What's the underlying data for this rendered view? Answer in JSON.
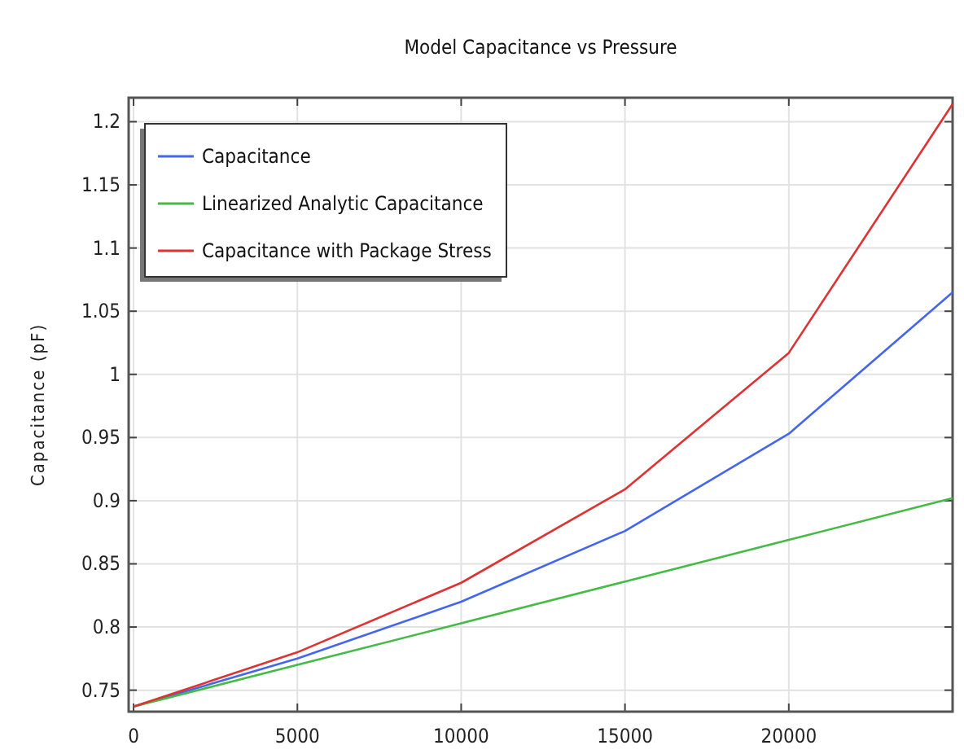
{
  "chart_data": {
    "type": "line",
    "title": "Model Capacitance vs Pressure",
    "ylabel": "Capacitance (pF)",
    "x": [
      0,
      5000,
      10000,
      15000,
      20000,
      25000
    ],
    "series": [
      {
        "name": "Capacitance",
        "color": "#4466ee",
        "values": [
          0.737,
          0.775,
          0.82,
          0.876,
          0.953,
          1.065
        ]
      },
      {
        "name": "Linearized Analytic Capacitance",
        "color": "#44bb44",
        "values": [
          0.737,
          0.77,
          0.803,
          0.836,
          0.869,
          0.902
        ]
      },
      {
        "name": "Capacitance with Package Stress",
        "color": "#dd3333",
        "values": [
          0.737,
          0.78,
          0.835,
          0.909,
          1.017,
          1.214
        ]
      }
    ],
    "xlim": [
      -150,
      25000
    ],
    "xticks": [
      0,
      5000,
      10000,
      15000,
      20000
    ],
    "ylim": [
      0.733,
      1.219
    ],
    "yticks": [
      {
        "value": 0.75,
        "label": "0.75"
      },
      {
        "value": 0.8,
        "label": "0.8"
      },
      {
        "value": 0.85,
        "label": "0.85"
      },
      {
        "value": 0.9,
        "label": "0.9"
      },
      {
        "value": 0.95,
        "label": "0.95"
      },
      1,
      {
        "value": 1.05,
        "label": "1.05"
      },
      {
        "value": 1.1,
        "label": "1.1"
      },
      {
        "value": 1.15,
        "label": "1.15"
      },
      {
        "value": 1.2,
        "label": "1.2"
      }
    ],
    "grid": true,
    "legend": "top left",
    "marker": "none",
    "line_style": "solid"
  }
}
